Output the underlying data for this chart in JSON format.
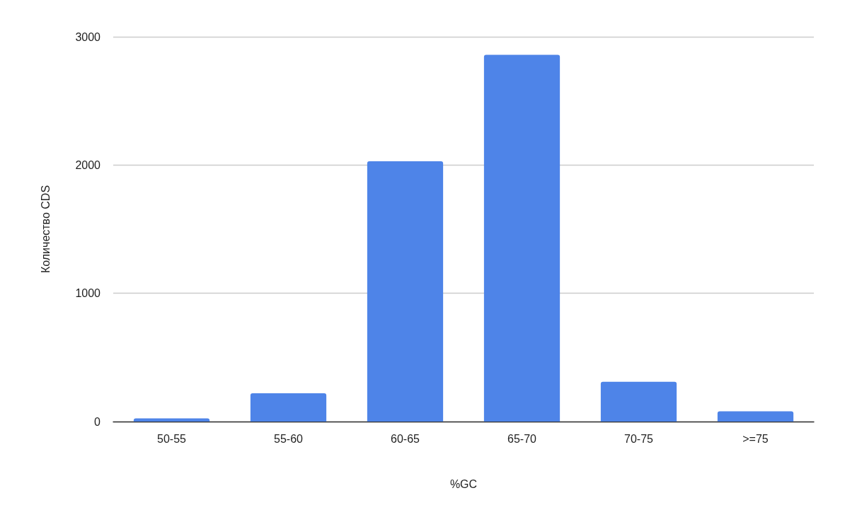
{
  "chart_data": {
    "type": "bar",
    "xlabel": "%GC",
    "ylabel": "Количество CDS",
    "categories": [
      "50-55",
      "55-60",
      "60-65",
      "65-70",
      "70-75",
      ">=75"
    ],
    "values": [
      25,
      220,
      2030,
      2860,
      310,
      80
    ],
    "color": "#4e84e8",
    "ylim": [
      0,
      3000
    ],
    "yticks": [
      0,
      1000,
      2000,
      3000
    ],
    "grid": "y"
  }
}
